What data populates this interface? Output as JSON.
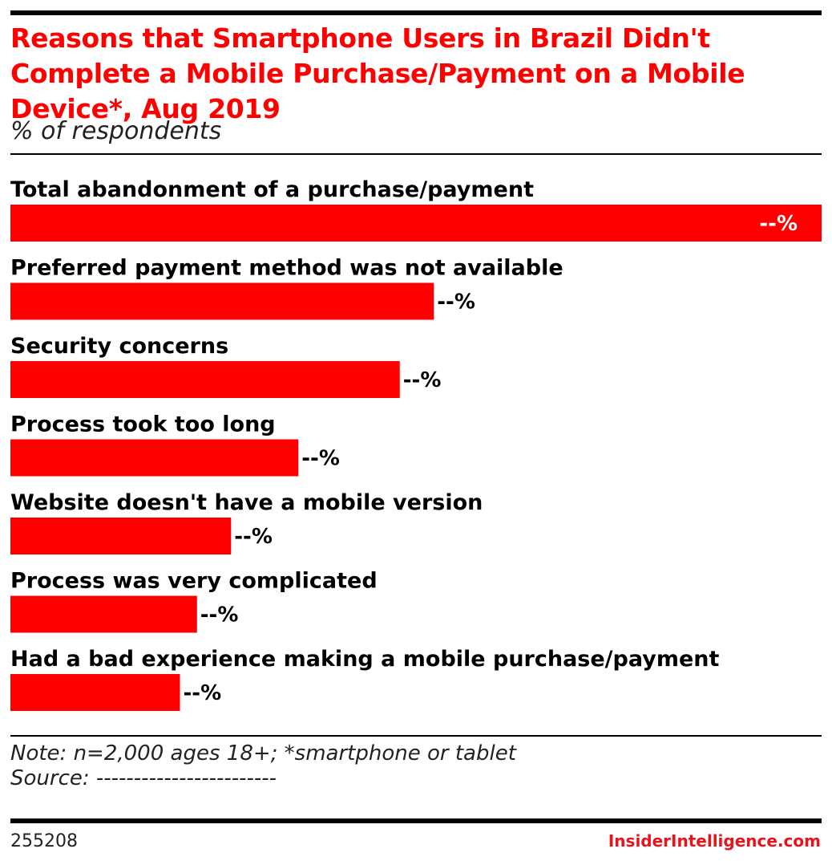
{
  "colors": {
    "bar": "#ff0000",
    "title": "#ff0000",
    "brand": "#e8141b",
    "value_inside": "#ffffff",
    "value_outside": "#000000"
  },
  "header": {
    "title": "Reasons that Smartphone Users in Brazil Didn't Complete a Mobile Purchase/Payment on a Mobile Device*, Aug 2019",
    "subtitle": "% of respondents"
  },
  "chart_data": {
    "type": "bar",
    "orientation": "horizontal",
    "title": "Reasons that Smartphone Users in Brazil Didn't Complete a Mobile Purchase/Payment on a Mobile Device*, Aug 2019",
    "subtitle": "% of respondents",
    "categories": [
      "Total abandonment of a purchase/payment",
      "Preferred payment method was not available",
      "Security concerns",
      "Process took too long",
      "Website doesn't have a mobile version",
      "Process was very complicated",
      "Had a bad experience making a mobile purchase/payment"
    ],
    "values": [
      100,
      52.2,
      48,
      35.5,
      27.2,
      23,
      20.9
    ],
    "value_labels": [
      "--%",
      "--%",
      "--%",
      "--%",
      "--%",
      "--%",
      "--%"
    ],
    "xlim": [
      0,
      100
    ],
    "grid": false,
    "legend": "none"
  },
  "footer": {
    "note": "Note: n=2,000 ages 18+; *smartphone or tablet",
    "source": "Source: ------------------------",
    "chart_id": "255208",
    "brand": "InsiderIntelligence.com"
  }
}
